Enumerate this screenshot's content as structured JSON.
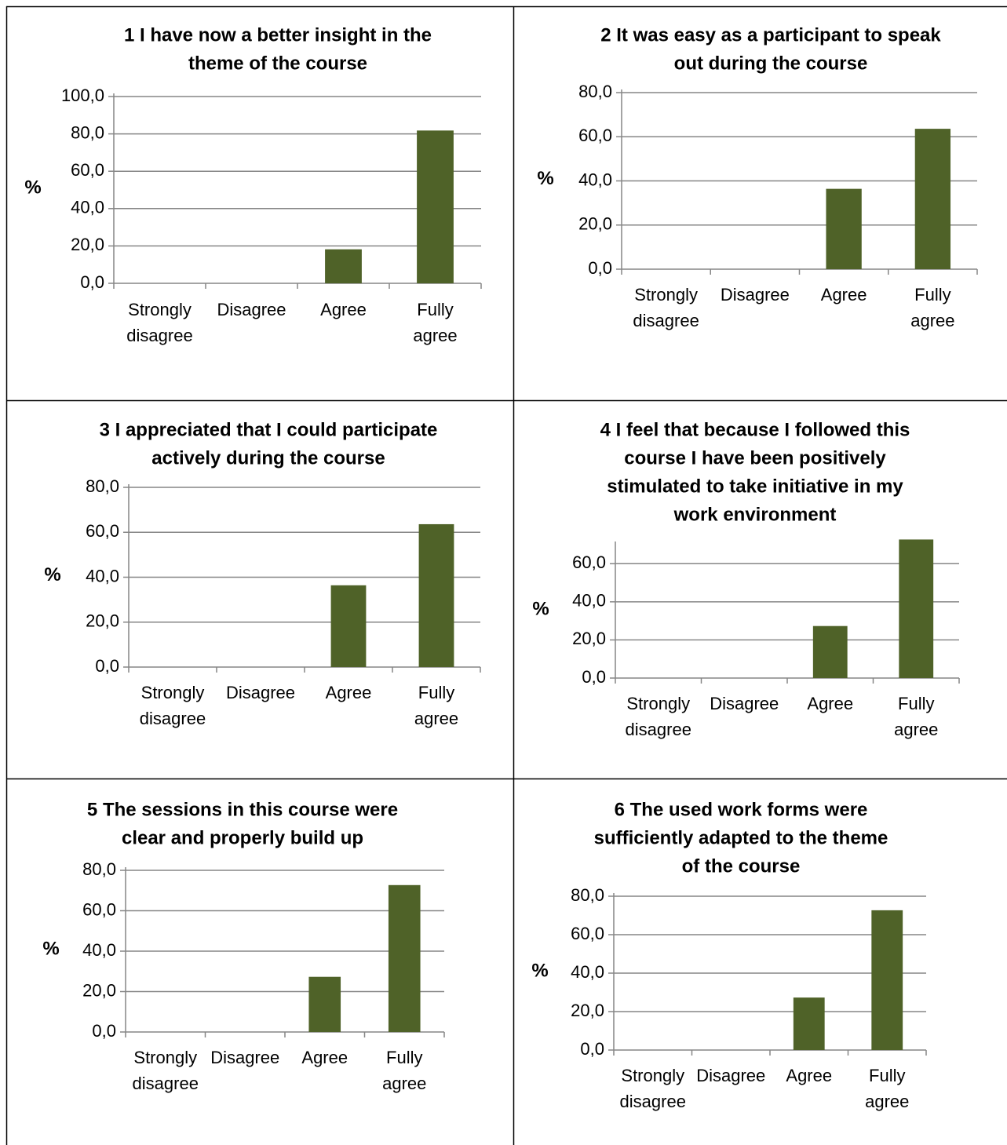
{
  "colors": {
    "bar": "#4f6228",
    "grid": "#868686",
    "border": "#000000",
    "text": "#000000"
  },
  "charts": [
    {
      "chart_data": {
        "type": "bar",
        "title": [
          "1 I have now a better insight in the",
          "theme of the course"
        ],
        "ylabel": "%",
        "categories": [
          [
            "Strongly",
            "disagree"
          ],
          [
            "Disagree"
          ],
          [
            "Agree"
          ],
          [
            "Fully",
            "agree"
          ]
        ],
        "values": [
          0,
          0,
          18.2,
          81.8
        ],
        "ylim": [
          0,
          100
        ],
        "yticks": [
          "0,0",
          "20,0",
          "40,0",
          "60,0",
          "80,0",
          "100,0"
        ],
        "grid": true,
        "legend": "none"
      }
    },
    {
      "chart_data": {
        "type": "bar",
        "title": [
          "2 It was easy as a participant to speak",
          "out during the course"
        ],
        "ylabel": "%",
        "categories": [
          [
            "Strongly",
            "disagree"
          ],
          [
            "Disagree"
          ],
          [
            "Agree"
          ],
          [
            "Fully",
            "agree"
          ]
        ],
        "values": [
          0,
          0,
          36.4,
          63.6
        ],
        "ylim": [
          0,
          80
        ],
        "yticks": [
          "0,0",
          "20,0",
          "40,0",
          "60,0",
          "80,0"
        ],
        "grid": true,
        "legend": "none"
      }
    },
    {
      "chart_data": {
        "type": "bar",
        "title": [
          "3 I appreciated that I could participate",
          "actively during the course"
        ],
        "ylabel": "%",
        "categories": [
          [
            "Strongly",
            "disagree"
          ],
          [
            "Disagree"
          ],
          [
            "Agree"
          ],
          [
            "Fully",
            "agree"
          ]
        ],
        "values": [
          0,
          0,
          36.4,
          63.6
        ],
        "ylim": [
          0,
          80
        ],
        "yticks": [
          "0,0",
          "20,0",
          "40,0",
          "60,0",
          "80,0"
        ],
        "grid": true,
        "legend": "none"
      }
    },
    {
      "chart_data": {
        "type": "bar",
        "title": [
          "4 I feel that because I followed this",
          "course I have been positively",
          "stimulated to take initiative in my",
          "work environment"
        ],
        "ylabel": "%",
        "categories": [
          [
            "Strongly",
            "disagree"
          ],
          [
            "Disagree"
          ],
          [
            "Agree"
          ],
          [
            "Fully",
            "agree"
          ]
        ],
        "values": [
          0,
          0,
          27.3,
          72.7
        ],
        "ylim": [
          0,
          70
        ],
        "yticks": [
          "0,0",
          "20,0",
          "40,0",
          "60,0"
        ],
        "grid": true,
        "legend": "none"
      }
    },
    {
      "chart_data": {
        "type": "bar",
        "title": [
          "5 The sessions in this course were",
          "clear and properly build up"
        ],
        "ylabel": "%",
        "categories": [
          [
            "Strongly",
            "disagree"
          ],
          [
            "Disagree"
          ],
          [
            "Agree"
          ],
          [
            "Fully",
            "agree"
          ]
        ],
        "values": [
          0,
          0,
          27.3,
          72.7
        ],
        "ylim": [
          0,
          80
        ],
        "yticks": [
          "0,0",
          "20,0",
          "40,0",
          "60,0",
          "80,0"
        ],
        "grid": true,
        "legend": "none"
      }
    },
    {
      "chart_data": {
        "type": "bar",
        "title": [
          "6 The used work forms were",
          "sufficiently adapted to the theme",
          "of the course"
        ],
        "ylabel": "%",
        "categories": [
          [
            "Strongly",
            "disagree"
          ],
          [
            "Disagree"
          ],
          [
            "Agree"
          ],
          [
            "Fully",
            "agree"
          ]
        ],
        "values": [
          0,
          0,
          27.3,
          72.7
        ],
        "ylim": [
          0,
          80
        ],
        "yticks": [
          "0,0",
          "20,0",
          "40,0",
          "60,0",
          "80,0"
        ],
        "grid": true,
        "legend": "none"
      }
    }
  ]
}
